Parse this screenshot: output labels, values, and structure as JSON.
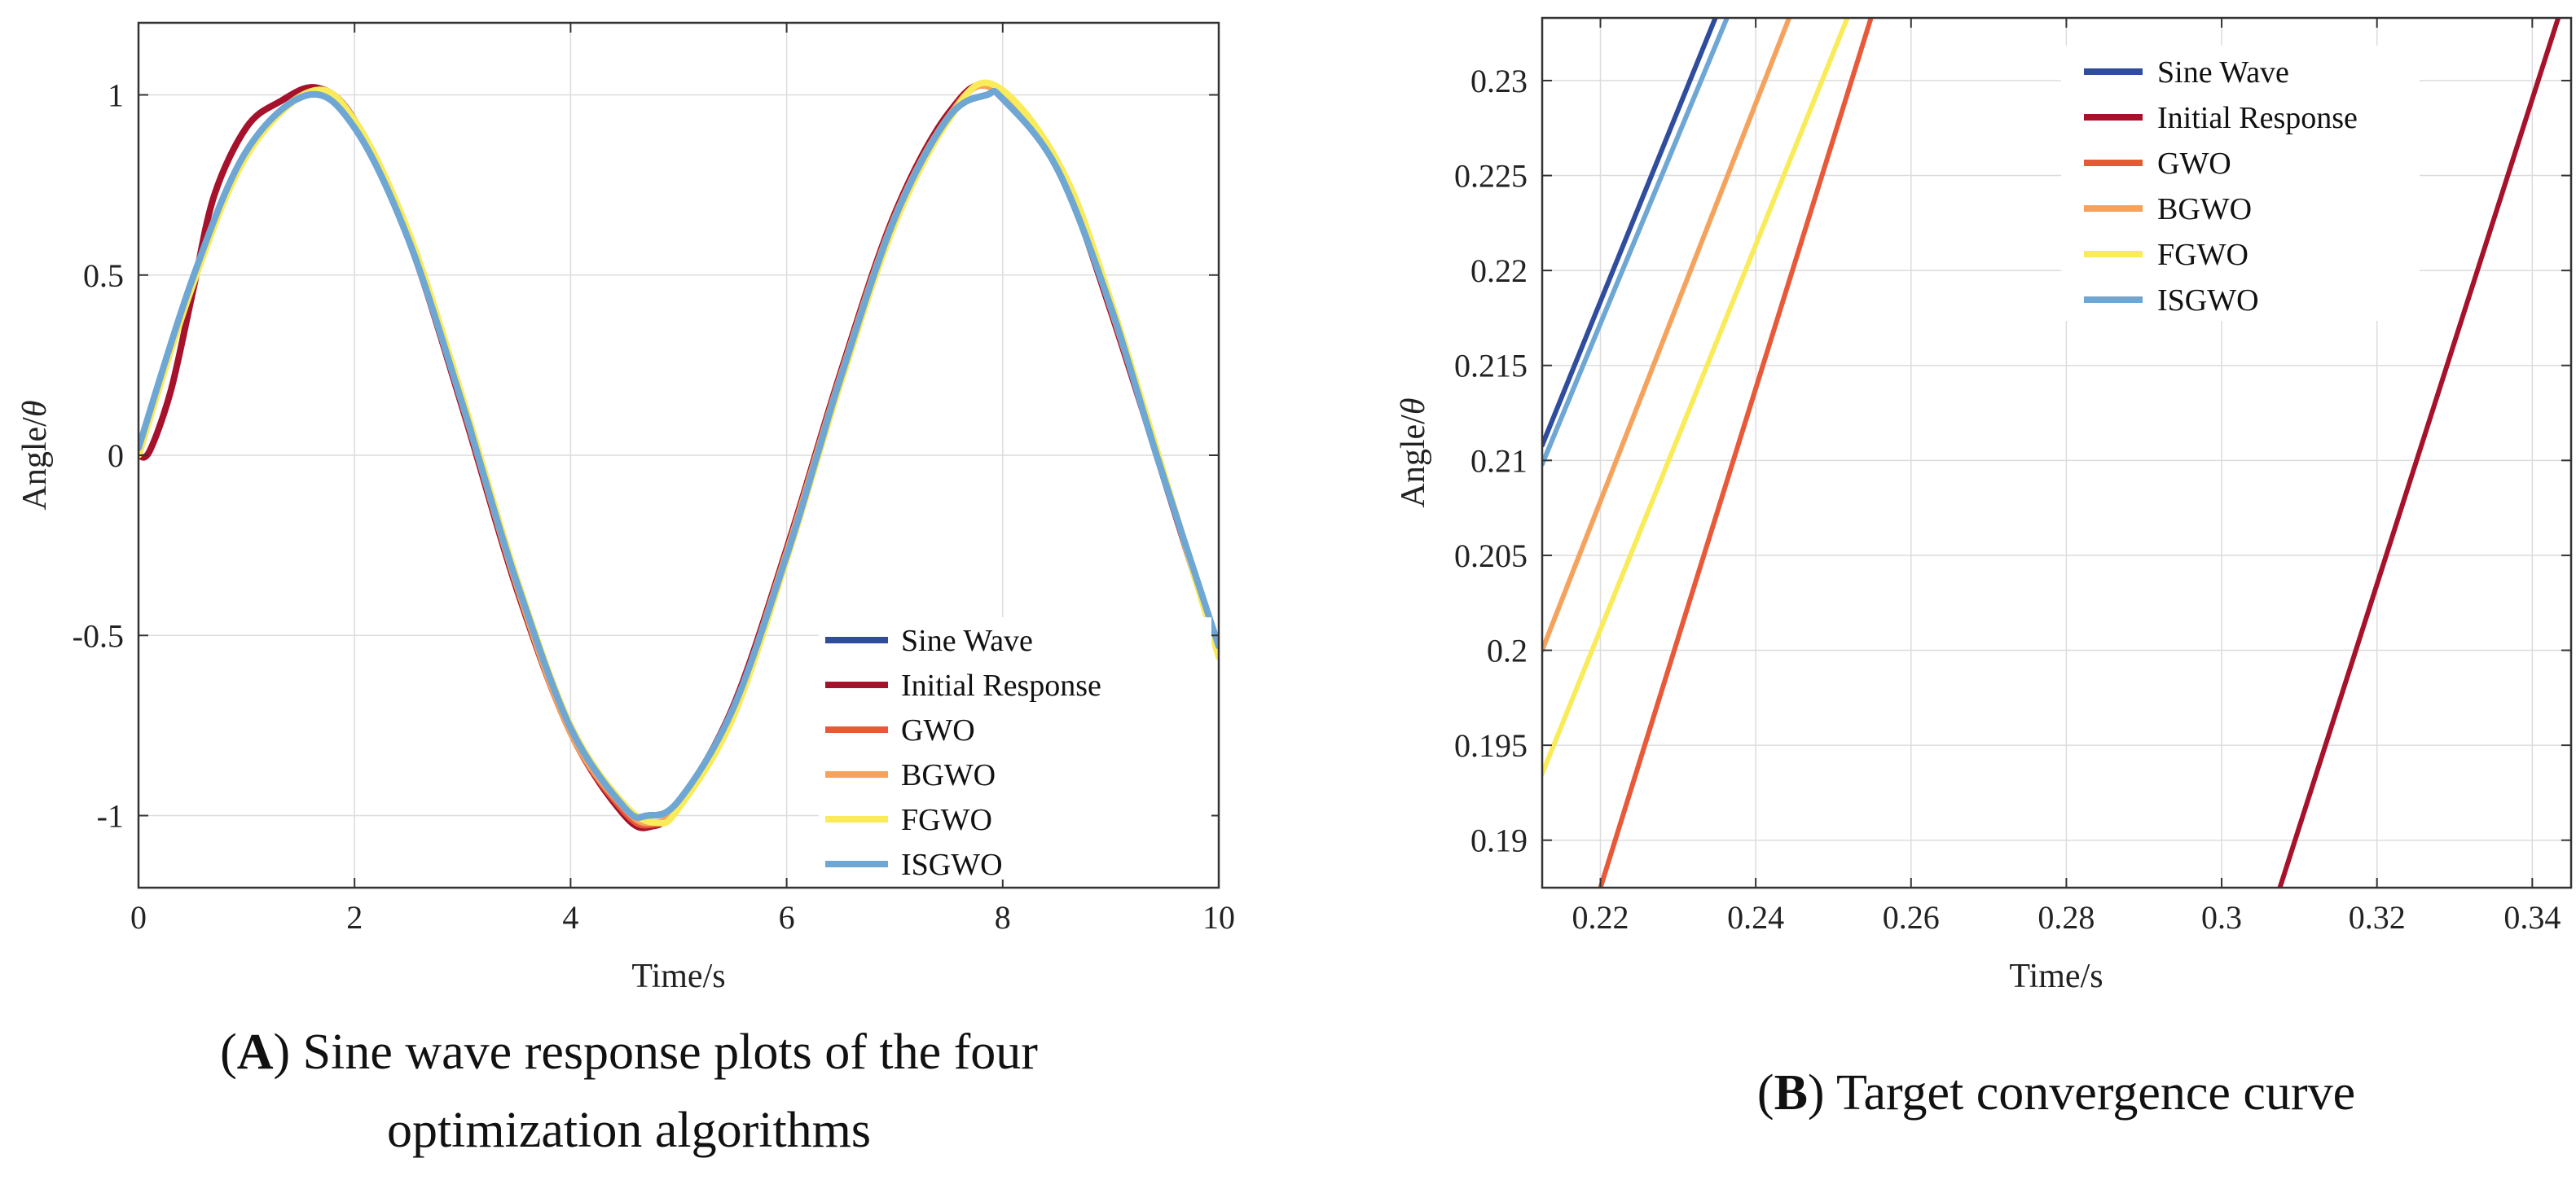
{
  "chart_data": [
    {
      "id": "A",
      "type": "line",
      "caption": {
        "letter": "A",
        "line1_rest": ") Sine wave response plots of the four",
        "line2": "optimization algorithms"
      },
      "xlabel": "Time/s",
      "ylabel_main": "Angle/",
      "ylabel_symbol": "θ",
      "xlim": [
        0,
        10
      ],
      "ylim": [
        -1.2,
        1.2
      ],
      "xticks": [
        0,
        2,
        4,
        6,
        8,
        10
      ],
      "xtick_labels": [
        "0",
        "2",
        "4",
        "6",
        "8",
        "10"
      ],
      "yticks": [
        -1,
        -0.5,
        0,
        0.5,
        1
      ],
      "ytick_labels": [
        "-1",
        "-0.5",
        "0",
        "0.5",
        "1"
      ],
      "grid": true,
      "legend_position": "bottom-right",
      "series": [
        {
          "name": "Sine Wave",
          "color": "#2F4D9C",
          "x": [
            0,
            0.5,
            1.0,
            1.5708,
            2.0,
            2.5,
            3.0,
            3.1416,
            3.5,
            4.0,
            4.5,
            4.7124,
            5.0,
            5.5,
            6.0,
            6.2832,
            6.5,
            7.0,
            7.5,
            7.854,
            8.0,
            8.5,
            9.0,
            9.4248,
            10.0
          ],
          "y": [
            0,
            0.479,
            0.841,
            1.0,
            0.909,
            0.598,
            0.141,
            0.0,
            -0.351,
            -0.757,
            -0.978,
            -1.0,
            -0.959,
            -0.706,
            -0.279,
            0.0,
            0.215,
            0.657,
            0.938,
            1.0,
            0.989,
            0.798,
            0.412,
            0.0,
            -0.544
          ]
        },
        {
          "name": "Initial Response",
          "color": "#A6112B",
          "x": [
            0,
            0.1,
            0.3,
            0.5,
            0.7,
            1.0,
            1.3,
            1.65,
            2.0,
            2.5,
            3.0,
            3.5,
            4.0,
            4.5,
            4.75,
            5.0,
            5.5,
            6.0,
            6.5,
            7.0,
            7.5,
            7.9,
            8.5,
            9.0,
            10.0
          ],
          "y": [
            0,
            0.01,
            0.18,
            0.45,
            0.72,
            0.91,
            0.98,
            1.02,
            0.93,
            0.6,
            0.13,
            -0.37,
            -0.77,
            -1.0,
            -1.03,
            -0.97,
            -0.7,
            -0.26,
            0.23,
            0.67,
            0.95,
            1.02,
            0.8,
            0.4,
            -0.55
          ]
        },
        {
          "name": "GWO",
          "color": "#E8593A",
          "x": [
            0,
            0.5,
            1.0,
            1.6,
            2.0,
            2.5,
            3.0,
            3.5,
            4.0,
            4.5,
            4.75,
            5.0,
            5.5,
            6.0,
            6.5,
            7.0,
            7.5,
            7.9,
            8.5,
            9.0,
            10.0
          ],
          "y": [
            0,
            0.48,
            0.84,
            1.01,
            0.92,
            0.6,
            0.14,
            -0.36,
            -0.77,
            -0.99,
            -1.025,
            -0.97,
            -0.71,
            -0.27,
            0.22,
            0.66,
            0.94,
            1.02,
            0.8,
            0.41,
            -0.55
          ]
        },
        {
          "name": "BGWO",
          "color": "#F5A25D",
          "x": [
            0,
            0.5,
            1.0,
            1.6,
            2.0,
            2.5,
            3.0,
            3.5,
            4.0,
            4.5,
            4.75,
            5.0,
            5.5,
            6.0,
            6.5,
            7.0,
            7.5,
            7.9,
            8.5,
            9.0,
            10.0
          ],
          "y": [
            0,
            0.48,
            0.84,
            1.01,
            0.92,
            0.6,
            0.14,
            -0.36,
            -0.77,
            -0.98,
            -1.02,
            -0.97,
            -0.71,
            -0.27,
            0.22,
            0.66,
            0.94,
            1.02,
            0.8,
            0.41,
            -0.55
          ]
        },
        {
          "name": "FGWO",
          "color": "#FAEB5A",
          "x": [
            0,
            0.5,
            1.0,
            1.6,
            2.0,
            2.5,
            3.0,
            3.5,
            4.0,
            4.5,
            4.8,
            5.0,
            5.5,
            6.0,
            6.5,
            7.0,
            7.5,
            7.9,
            8.5,
            9.0,
            10.0
          ],
          "y": [
            0,
            0.47,
            0.83,
            1.01,
            0.93,
            0.62,
            0.16,
            -0.34,
            -0.75,
            -0.97,
            -1.02,
            -0.98,
            -0.73,
            -0.29,
            0.2,
            0.64,
            0.93,
            1.03,
            0.82,
            0.43,
            -0.56
          ]
        },
        {
          "name": "ISGWO",
          "color": "#6FA7D4",
          "x": [
            0,
            0.5,
            1.0,
            1.5708,
            2.0,
            2.5,
            3.0,
            3.1416,
            3.5,
            4.0,
            4.5,
            4.7124,
            5.0,
            5.5,
            6.0,
            6.2832,
            6.5,
            7.0,
            7.5,
            7.854,
            8.0,
            8.5,
            9.0,
            9.4248,
            10.0
          ],
          "y": [
            0.02,
            0.49,
            0.845,
            1.0,
            0.909,
            0.598,
            0.141,
            0.0,
            -0.351,
            -0.757,
            -0.978,
            -1.0,
            -0.959,
            -0.706,
            -0.279,
            0.0,
            0.215,
            0.657,
            0.938,
            1.0,
            0.989,
            0.798,
            0.412,
            0.0,
            -0.53
          ]
        }
      ]
    },
    {
      "id": "B",
      "type": "line",
      "caption": {
        "letter": "B",
        "line1_rest": ") Target convergence curve"
      },
      "xlabel": "Time/s",
      "ylabel_main": "Angle/",
      "ylabel_symbol": "θ",
      "xlim": [
        0.2125,
        0.345
      ],
      "ylim": [
        0.1875,
        0.2333
      ],
      "xticks": [
        0.22,
        0.24,
        0.26,
        0.28,
        0.3,
        0.32,
        0.34
      ],
      "xtick_labels": [
        "0.22",
        "0.24",
        "0.26",
        "0.28",
        "0.3",
        "0.32",
        "0.34"
      ],
      "yticks": [
        0.19,
        0.195,
        0.2,
        0.205,
        0.21,
        0.215,
        0.22,
        0.225,
        0.23
      ],
      "ytick_labels": [
        "0.19",
        "0.195",
        "0.2",
        "0.205",
        "0.21",
        "0.215",
        "0.22",
        "0.225",
        "0.23"
      ],
      "grid": true,
      "legend_position": "top-right",
      "series": [
        {
          "name": "Sine Wave",
          "color": "#2F4D9C",
          "x": [
            0.2125,
            0.235
          ],
          "y": [
            0.2108,
            0.2335
          ]
        },
        {
          "name": "Initial Response",
          "color": "#A6112B",
          "x": [
            0.3075,
            0.3435
          ],
          "y": [
            0.1875,
            0.2335
          ]
        },
        {
          "name": "GWO",
          "color": "#E8593A",
          "x": [
            0.22,
            0.255
          ],
          "y": [
            0.1875,
            0.2335
          ]
        },
        {
          "name": "BGWO",
          "color": "#F5A25D",
          "x": [
            0.2125,
            0.2445
          ],
          "y": [
            0.2,
            0.2335
          ]
        },
        {
          "name": "FGWO",
          "color": "#FAEB5A",
          "x": [
            0.2125,
            0.252
          ],
          "y": [
            0.1935,
            0.2335
          ]
        },
        {
          "name": "ISGWO",
          "color": "#6FA7D4",
          "x": [
            0.2125,
            0.2365
          ],
          "y": [
            0.2098,
            0.2335
          ]
        }
      ]
    }
  ]
}
